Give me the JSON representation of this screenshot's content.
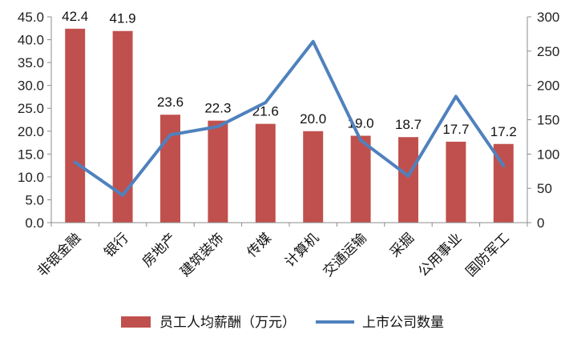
{
  "chart_data": {
    "type": "bar+line",
    "categories": [
      "非银金融",
      "银行",
      "房地产",
      "建筑装饰",
      "传媒",
      "计算机",
      "交通运输",
      "采掘",
      "公用事业",
      "国防军工"
    ],
    "series": [
      {
        "name": "员工人均薪酬（万元）",
        "type": "bar",
        "axis": "left",
        "color": "#c0504d",
        "values": [
          42.4,
          41.9,
          23.6,
          22.3,
          21.6,
          20.0,
          19.0,
          18.7,
          17.7,
          17.2
        ],
        "labels": [
          "42.4",
          "41.9",
          "23.6",
          "22.3",
          "21.6",
          "20.0",
          "19.0",
          "18.7",
          "17.7",
          "17.2"
        ]
      },
      {
        "name": "上市公司数量",
        "type": "line",
        "axis": "right",
        "color": "#4f81bd",
        "values": [
          88,
          40,
          128,
          140,
          175,
          264,
          120,
          68,
          184,
          83
        ]
      }
    ],
    "y_left": {
      "min": 0,
      "max": 45,
      "ticks": [
        "0.0",
        "5.0",
        "10.0",
        "15.0",
        "20.0",
        "25.0",
        "30.0",
        "35.0",
        "40.0",
        "45.0"
      ]
    },
    "y_right": {
      "min": 0,
      "max": 300,
      "ticks": [
        "0",
        "50",
        "100",
        "150",
        "200",
        "250",
        "300"
      ]
    },
    "legend": {
      "position": "bottom"
    }
  }
}
